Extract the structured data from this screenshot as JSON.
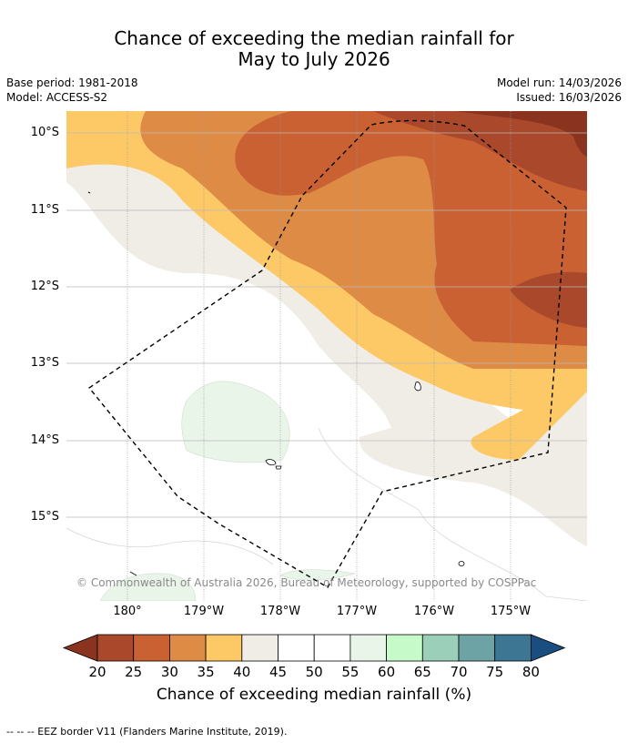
{
  "title": {
    "line1": "Chance of exceeding the median rainfall for",
    "line2": "May to July 2026"
  },
  "meta": {
    "base_period": "Base period: 1981-2018",
    "model": "Model: ACCESS-S2",
    "model_run": "Model run: 14/03/2026",
    "issued": "Issued: 16/03/2026"
  },
  "map": {
    "lat_labels": [
      "10°S",
      "11°S",
      "12°S",
      "13°S",
      "14°S",
      "15°S"
    ],
    "lon_labels": [
      "180°",
      "179°W",
      "178°W",
      "177°W",
      "176°W",
      "175°W"
    ],
    "credit": "© Commonwealth of Australia 2026, Bureau of Meteorology, supported by COSPPac",
    "region_outline": "EEZ border V11"
  },
  "colorbar": {
    "ticks": [
      "20",
      "25",
      "30",
      "35",
      "40",
      "45",
      "50",
      "55",
      "60",
      "65",
      "70",
      "75",
      "80"
    ],
    "colors": [
      "#a9482a",
      "#c96132",
      "#de8c45",
      "#fdc966",
      "#f0ece6",
      "#ffffff",
      "#ffffff",
      "#e9f5e9",
      "#c6fbc9",
      "#9ccfb9",
      "#6ea3a6",
      "#3c7692"
    ],
    "below_color": "#8a3420",
    "above_color": "#1a4e80",
    "label": "Chance of exceeding median rainfall (%)"
  },
  "footnote": "--  --  -- EEZ border V11 (Flanders Marine Institute, 2019)."
}
